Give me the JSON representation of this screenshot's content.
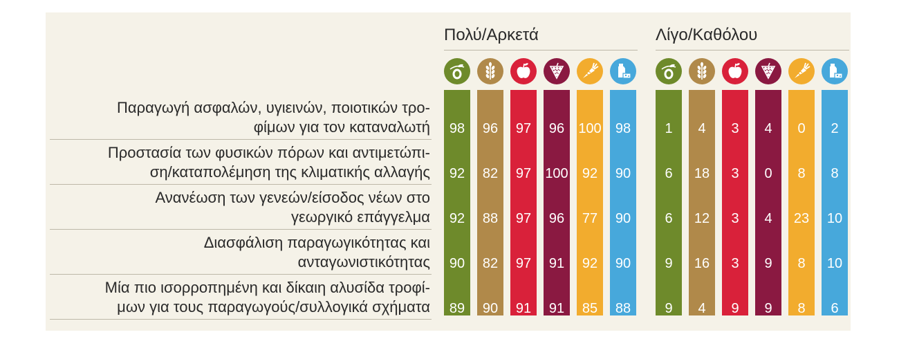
{
  "colors": {
    "olive": "#6e8a2b",
    "wheat": "#b0894a",
    "apple": "#d9213a",
    "grape": "#8a1941",
    "carrot": "#f2ac2e",
    "milk": "#47a8db"
  },
  "chart_data": {
    "type": "table",
    "groups": [
      {
        "title": "Πολύ/Αρκετά"
      },
      {
        "title": "Λίγο/Καθόλου"
      }
    ],
    "categories": [
      {
        "icon": "olive-icon"
      },
      {
        "icon": "wheat-icon"
      },
      {
        "icon": "apple-icon"
      },
      {
        "icon": "grapes-icon"
      },
      {
        "icon": "carrot-icon"
      },
      {
        "icon": "milk-cheese-icon"
      }
    ],
    "rows": [
      {
        "label_lines": [
          "Παραγωγή ασφαλών, υγιεινών, ποιοτικών τρο-",
          "φίμων για τον καταναλωτή"
        ],
        "values": [
          [
            98,
            96,
            97,
            96,
            100,
            98
          ],
          [
            1,
            4,
            3,
            4,
            0,
            2
          ]
        ]
      },
      {
        "label_lines": [
          "Προστασία των φυσικών πόρων και αντιμετώπι-",
          "ση/καταπολέμηση της κλιματικής αλλαγής"
        ],
        "values": [
          [
            92,
            82,
            97,
            100,
            92,
            90
          ],
          [
            6,
            18,
            3,
            0,
            8,
            8
          ]
        ]
      },
      {
        "label_lines": [
          "Ανανέωση των γενεών/είσοδος νέων στο",
          "γεωργικό επάγγελμα"
        ],
        "values": [
          [
            92,
            88,
            97,
            96,
            77,
            90
          ],
          [
            6,
            12,
            3,
            4,
            23,
            10
          ]
        ]
      },
      {
        "label_lines": [
          "Διασφάλιση παραγωγικότητας και",
          "ανταγωνιστικότητας"
        ],
        "values": [
          [
            90,
            82,
            97,
            91,
            92,
            90
          ],
          [
            9,
            16,
            3,
            9,
            8,
            10
          ]
        ]
      },
      {
        "label_lines": [
          "Μία πιο ισορροπημένη και δίκαιη αλυσίδα τροφί-",
          "μων για τους παραγωγούς/συλλογικά σχήματα"
        ],
        "values": [
          [
            89,
            90,
            91,
            91,
            85,
            88
          ],
          [
            9,
            4,
            9,
            9,
            8,
            6
          ]
        ]
      }
    ]
  }
}
